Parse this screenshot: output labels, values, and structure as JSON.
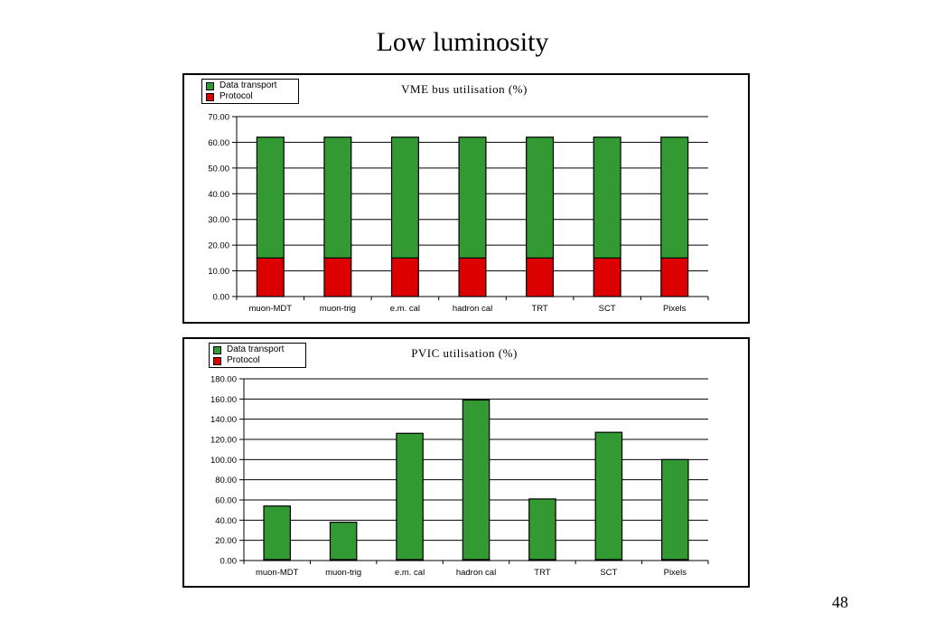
{
  "page": {
    "title": "Low luminosity",
    "page_number": "48"
  },
  "legend": {
    "items": [
      {
        "name": "Data transport",
        "color": "#339933"
      },
      {
        "name": "Protocol",
        "color": "#dd0000"
      }
    ]
  },
  "chart_data": [
    {
      "type": "bar",
      "stacked": true,
      "title": "VME bus utilisation (%)",
      "categories": [
        "muon-MDT",
        "muon-trig",
        "e.m. cal",
        "hadron cal",
        "TRT",
        "SCT",
        "Pixels"
      ],
      "series": [
        {
          "name": "Protocol",
          "values": [
            15,
            15,
            15,
            15,
            15,
            15,
            15
          ]
        },
        {
          "name": "Data transport",
          "values": [
            47,
            47,
            47,
            47,
            47,
            47,
            47
          ]
        }
      ],
      "ylim": [
        0,
        70
      ],
      "yticks": [
        "0.00",
        "10.00",
        "20.00",
        "30.00",
        "40.00",
        "50.00",
        "60.00",
        "70.00"
      ],
      "grid": true,
      "legend_position": "top-left"
    },
    {
      "type": "bar",
      "stacked": true,
      "title": "PVIC utilisation (%)",
      "categories": [
        "muon-MDT",
        "muon-trig",
        "e.m. cal",
        "hadron cal",
        "TRT",
        "SCT",
        "Pixels"
      ],
      "series": [
        {
          "name": "Protocol",
          "values": [
            1,
            1,
            1,
            1,
            1,
            1,
            1
          ]
        },
        {
          "name": "Data transport",
          "values": [
            53,
            37,
            125,
            158,
            60,
            126,
            99
          ]
        }
      ],
      "ylim": [
        0,
        180
      ],
      "yticks": [
        "0.00",
        "20.00",
        "40.00",
        "60.00",
        "80.00",
        "100.00",
        "120.00",
        "140.00",
        "160.00",
        "180.00"
      ],
      "grid": true,
      "legend_position": "top-left"
    }
  ]
}
